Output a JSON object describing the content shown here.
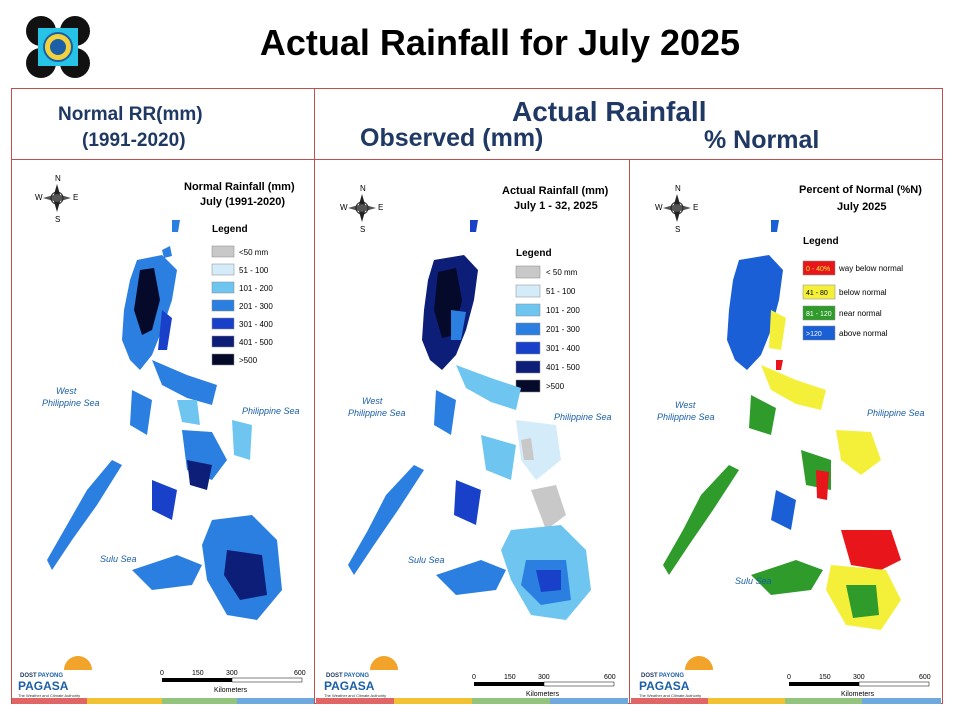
{
  "header": {
    "title": "Actual Rainfall for July 2025"
  },
  "columns": {
    "left_header_line1": "Normal RR(mm)",
    "left_header_line2": "(1991-2020)",
    "right_header_main": "Actual Rainfall",
    "right_header_observed": "Observed (mm)",
    "right_header_percent": "% Normal"
  },
  "maps": [
    {
      "title_line1": "Normal Rainfall (mm)",
      "title_line2": "July (1991-2020)",
      "legend_title": "Legend",
      "legend": [
        {
          "label": "<50 mm",
          "color": "#c8c8c8"
        },
        {
          "label": "51 - 100",
          "color": "#d4ecfa"
        },
        {
          "label": "101 - 200",
          "color": "#6ec6f0"
        },
        {
          "label": "201 - 300",
          "color": "#2b7fe0"
        },
        {
          "label": "301 - 400",
          "color": "#1840c8"
        },
        {
          "label": "401 - 500",
          "color": "#0d1e78"
        },
        {
          "label": ">500",
          "color": "#050a2a"
        }
      ],
      "label_west": "West",
      "label_west2": "Philippine Sea",
      "label_east": "Philippine Sea",
      "label_sulu": "Sulu Sea",
      "scale_ticks": [
        "0",
        "150",
        "300",
        "600"
      ],
      "scale_unit": "Kilometers"
    },
    {
      "title_line1": "Actual Rainfall (mm)",
      "title_line2": "July 1 - 32, 2025",
      "legend_title": "Legend",
      "legend": [
        {
          "label": "< 50 mm",
          "color": "#c8c8c8"
        },
        {
          "label": "51 - 100",
          "color": "#d4ecfa"
        },
        {
          "label": "101 - 200",
          "color": "#6ec6f0"
        },
        {
          "label": "201 - 300",
          "color": "#2b7fe0"
        },
        {
          "label": "301 - 400",
          "color": "#1840c8"
        },
        {
          "label": "401 - 500",
          "color": "#0d1e78"
        },
        {
          "label": ">500",
          "color": "#050a2a"
        }
      ],
      "label_west": "West",
      "label_west2": "Philippine Sea",
      "label_east": "Philippine Sea",
      "label_sulu": "Sulu Sea",
      "scale_ticks": [
        "0",
        "150",
        "300",
        "600"
      ],
      "scale_unit": "Kilometers"
    },
    {
      "title_line1": "Percent of Normal (%N)",
      "title_line2": "July 2025",
      "legend_title": "Legend",
      "legend": [
        {
          "label": "0 - 40%",
          "desc": "way below normal",
          "color": "#e8151b"
        },
        {
          "label": "41 - 80",
          "desc": "below normal",
          "color": "#f4f03a"
        },
        {
          "label": "81 - 120",
          "desc": "near normal",
          "color": "#2f9b2b"
        },
        {
          "label": ">120",
          "desc": "above normal",
          "color": "#1a5fd6"
        }
      ],
      "label_west": "West",
      "label_west2": "Philippine Sea",
      "label_east": "Philippine Sea",
      "label_sulu": "Sulu Sea",
      "scale_ticks": [
        "0",
        "150",
        "300",
        "600"
      ],
      "scale_unit": "Kilometers"
    }
  ],
  "compass": {
    "n": "N",
    "s": "S",
    "e": "E",
    "w": "W"
  },
  "branding": {
    "dost": "DOST",
    "payong": "PAYONG",
    "pagasa": "PAGASA",
    "tagline": "The Weather and Climate Authority"
  },
  "strip_colors": [
    "#e06666",
    "#f1c232",
    "#93c47d",
    "#6fa8dc"
  ]
}
